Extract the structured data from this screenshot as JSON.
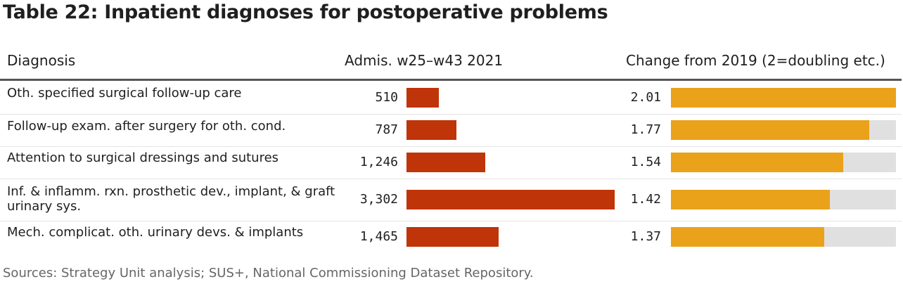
{
  "title": "Table 22: Inpatient diagnoses for postoperative problems",
  "columns": {
    "diagnosis": "Diagnosis",
    "admissions": "Admis. w25–w43 2021",
    "change": "Change from 2019 (2=doubling etc.)"
  },
  "rows": [
    {
      "diagnosis": "Oth. specified surgical follow-up care",
      "admissions_label": "510",
      "change_label": "2.01"
    },
    {
      "diagnosis": "Follow-up exam. after surgery for oth. cond.",
      "admissions_label": "787",
      "change_label": "1.77"
    },
    {
      "diagnosis": "Attention to surgical dressings and sutures",
      "admissions_label": "1,246",
      "change_label": "1.54"
    },
    {
      "diagnosis": "Inf. & inflamm. rxn. prosthetic dev., implant, & graft urinary sys.",
      "admissions_label": "3,302",
      "change_label": "1.42"
    },
    {
      "diagnosis": "Mech. complicat. oth. urinary devs. & implants",
      "admissions_label": "1,465",
      "change_label": "1.37"
    }
  ],
  "source": "Sources: Strategy Unit analysis; SUS+, National Commissioning Dataset Repository.",
  "colors": {
    "admissions_bar": "#bf3408",
    "change_bar": "#eaa21a",
    "change_background": "#e0e0e0",
    "header_rule": "#555555"
  },
  "chart_data": {
    "type": "table",
    "categories": [
      "Oth. specified surgical follow-up care",
      "Follow-up exam. after surgery for oth. cond.",
      "Attention to surgical dressings and sutures",
      "Inf. & inflamm. rxn. prosthetic dev., implant, & graft urinary sys.",
      "Mech. complicat. oth. urinary devs. & implants"
    ],
    "series": [
      {
        "name": "Admis. w25–w43 2021",
        "values": [
          510,
          787,
          1246,
          3302,
          1465
        ]
      },
      {
        "name": "Change from 2019 (2=doubling etc.)",
        "values": [
          2.01,
          1.77,
          1.54,
          1.42,
          1.37
        ]
      }
    ],
    "admissions_max": 3302,
    "change_range": [
      0,
      2.01
    ],
    "grid": false
  }
}
